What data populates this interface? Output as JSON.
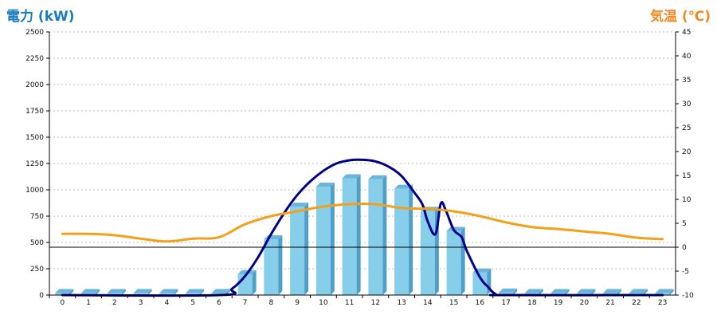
{
  "chart_data": {
    "type": "bar",
    "ylabel": "電力 (kW)",
    "y2label": "気温 (℃)",
    "categories": [
      "0",
      "1",
      "2",
      "3",
      "4",
      "5",
      "6",
      "7",
      "8",
      "9",
      "10",
      "11",
      "12",
      "13",
      "14",
      "15",
      "16",
      "17",
      "18",
      "19",
      "20",
      "21",
      "22",
      "23"
    ],
    "ylim": [
      0,
      2500
    ],
    "yticks": [
      0,
      250,
      500,
      750,
      1000,
      1250,
      1500,
      1750,
      2000,
      2250,
      2500
    ],
    "y2lim": [
      -10,
      45
    ],
    "y2ticks": [
      -10,
      -5,
      0,
      5,
      10,
      15,
      20,
      25,
      30,
      35,
      40,
      45
    ],
    "grid": true,
    "colors": {
      "bar": "#87ceeb",
      "bar_side": "#4f9fc9",
      "bar_top": "#6bb5dc",
      "power_line": "#00008b",
      "temperature_line": "#f5a01a",
      "axis": "#000000",
      "grid": "#b8b8b8"
    },
    "series": [
      {
        "type": "bar",
        "axis": "left",
        "values": [
          20,
          20,
          20,
          20,
          20,
          20,
          20,
          200,
          530,
          840,
          1030,
          1110,
          1100,
          1010,
          800,
          610,
          215,
          25,
          20,
          20,
          20,
          20,
          20,
          20
        ]
      },
      {
        "type": "line",
        "axis": "left",
        "x": [
          0,
          6,
          6.5,
          7,
          7.5,
          8,
          8.5,
          9,
          9.5,
          10,
          10.5,
          11,
          11.5,
          12,
          12.5,
          13,
          13.5,
          13.8,
          14,
          14.3,
          14.5,
          14.7,
          15,
          15.3,
          15.5,
          16,
          16.3,
          16.6,
          17,
          23
        ],
        "values": [
          0,
          0,
          60,
          180,
          360,
          580,
          780,
          950,
          1080,
          1180,
          1250,
          1280,
          1285,
          1270,
          1220,
          1130,
          970,
          860,
          700,
          580,
          870,
          800,
          620,
          550,
          420,
          170,
          80,
          10,
          0,
          0
        ]
      },
      {
        "type": "line",
        "axis": "right",
        "x": [
          0,
          1,
          2,
          3,
          4,
          5,
          6,
          7,
          8,
          9,
          10,
          11,
          12,
          13,
          14,
          15,
          16,
          17,
          18,
          19,
          20,
          21,
          22,
          23
        ],
        "values": [
          2.8,
          2.8,
          2.5,
          1.8,
          1.2,
          1.8,
          2.1,
          4.8,
          6.5,
          7.5,
          8.5,
          9.0,
          9.0,
          8.2,
          8.0,
          7.5,
          6.5,
          5.2,
          4.2,
          3.8,
          3.3,
          2.8,
          2.0,
          1.7
        ]
      }
    ]
  }
}
